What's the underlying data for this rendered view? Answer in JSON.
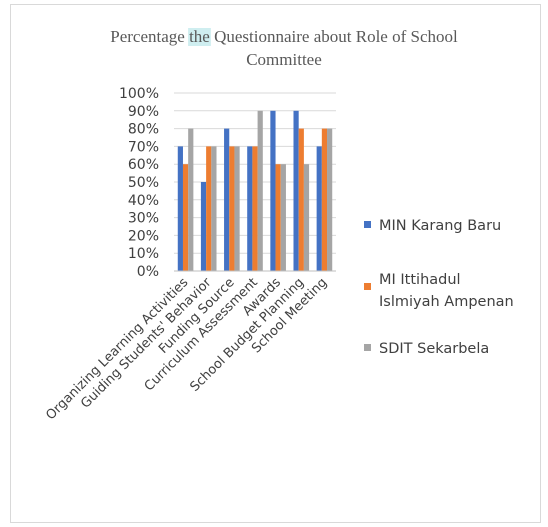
{
  "chart_data": {
    "type": "bar",
    "title_lines": [
      [
        "Percentage ",
        "the",
        " Questionnaire about  Role of School"
      ],
      [
        "Committee"
      ]
    ],
    "title_highlight_word": "the",
    "categories": [
      "Organizing Learning Activities",
      "Guiding Students' Behavior",
      "Funding Source",
      "Curriculum Assessment",
      "Awards",
      "School Budget Planning",
      "School Meeting"
    ],
    "series": [
      {
        "name": "MIN Karang Baru",
        "color": "#4472c4",
        "values": [
          70,
          50,
          80,
          70,
          90,
          90,
          70
        ]
      },
      {
        "name": "MI Ittihadul Islmiyah Ampenan",
        "color": "#ed7d31",
        "values": [
          60,
          70,
          70,
          70,
          60,
          80,
          80
        ]
      },
      {
        "name": "SDIT Sekarbela",
        "color": "#a5a5a5",
        "values": [
          80,
          70,
          70,
          90,
          60,
          60,
          80
        ]
      }
    ],
    "legend_lines": [
      [
        "MIN Karang Baru"
      ],
      [
        "MI Ittihadul",
        "Islmiyah Ampenan"
      ],
      [
        "SDIT Sekarbela"
      ]
    ],
    "yticks": [
      "0%",
      "10%",
      "20%",
      "30%",
      "40%",
      "50%",
      "60%",
      "70%",
      "80%",
      "90%",
      "100%"
    ],
    "ylim": [
      0,
      100
    ],
    "unit": "%",
    "grid": true,
    "legend_position": "right",
    "xlabel": "",
    "ylabel": ""
  }
}
